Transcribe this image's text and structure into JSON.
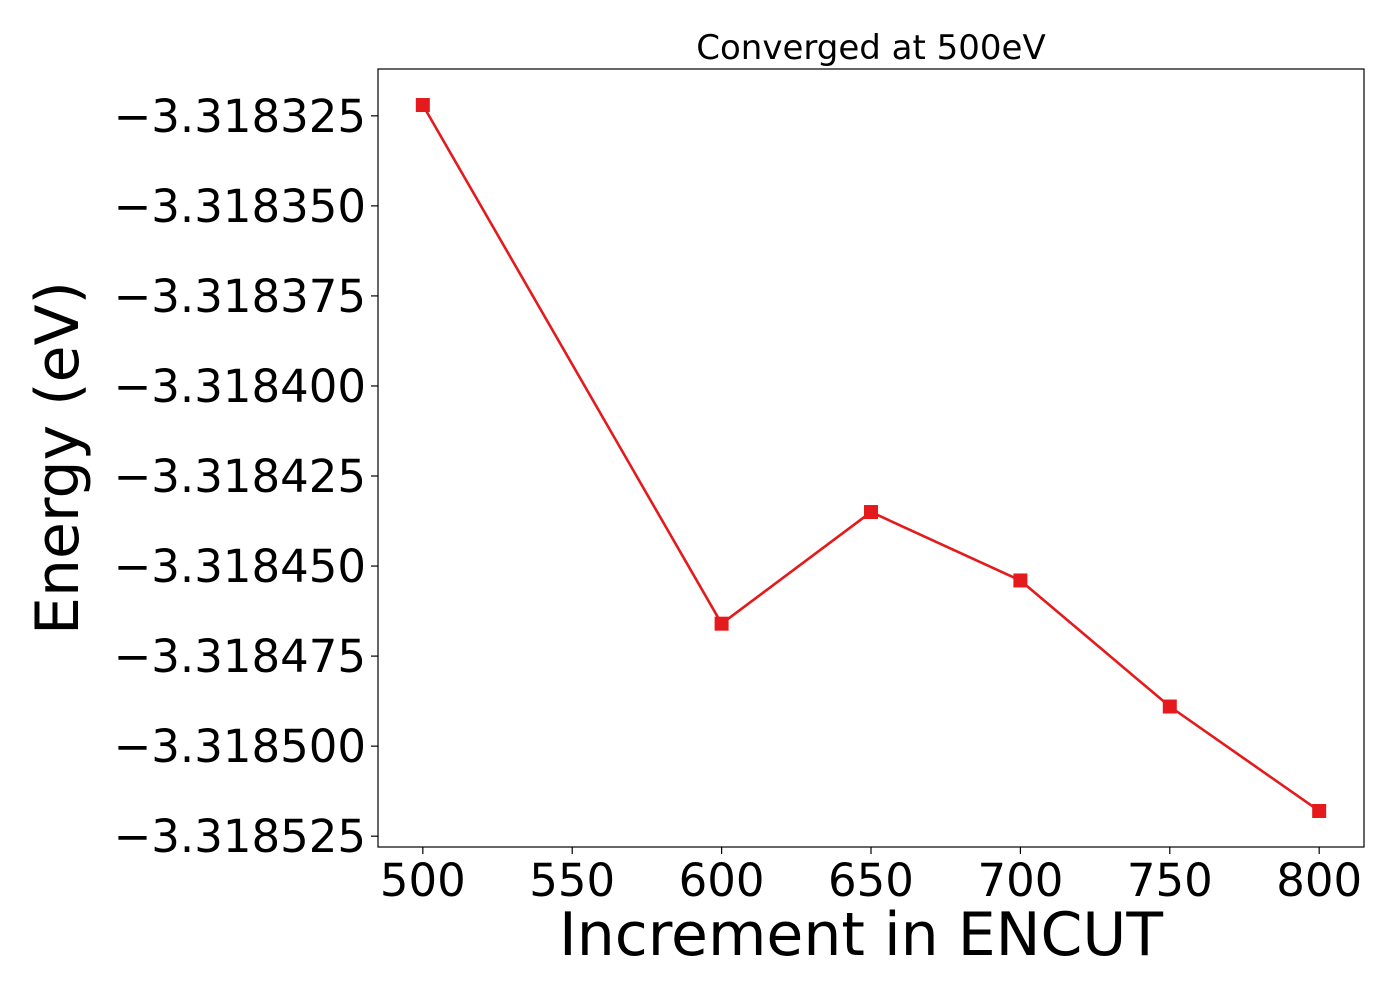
{
  "chart_data": {
    "type": "line",
    "title": "Converged at 500eV",
    "xlabel": "Increment in ENCUT",
    "ylabel": "Energy (eV)",
    "x": [
      500,
      600,
      650,
      700,
      750,
      800
    ],
    "series": [
      {
        "values": [
          -3.318322,
          -3.318466,
          -3.318435,
          -3.318454,
          -3.318489,
          -3.318518
        ],
        "color": "#e41a1c",
        "marker": "square"
      }
    ],
    "xticks": [
      500,
      550,
      600,
      650,
      700,
      750,
      800
    ],
    "xtick_labels": [
      "500",
      "550",
      "600",
      "650",
      "700",
      "750",
      "800"
    ],
    "yticks": [
      -3.318325,
      -3.31835,
      -3.318375,
      -3.3184,
      -3.318425,
      -3.31845,
      -3.318475,
      -3.3185,
      -3.318525
    ],
    "ytick_labels": [
      "−3.318325",
      "−3.318350",
      "−3.318375",
      "−3.318400",
      "−3.318425",
      "−3.318450",
      "−3.318475",
      "−3.318500",
      "−3.318525"
    ],
    "xlim": [
      485,
      815
    ],
    "ylim": [
      -3.318528,
      -3.318312
    ],
    "grid": false
  }
}
